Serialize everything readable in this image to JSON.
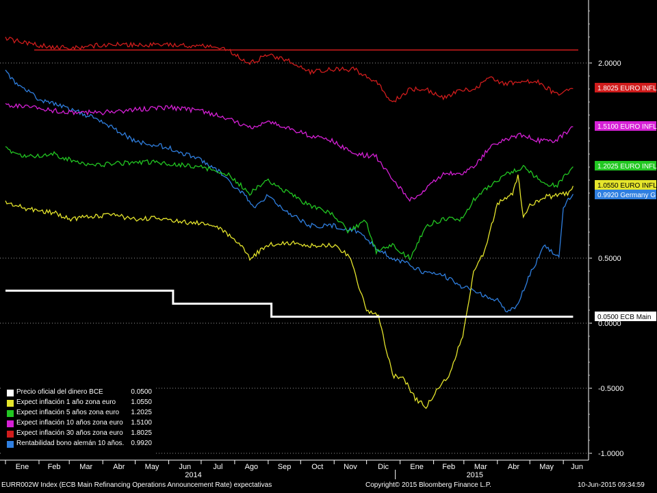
{
  "footer": {
    "index": "EURR002W Index (ECB Main Refinancing Operations Announcement Rate) expectativas",
    "copyright": "Copyright© 2015 Bloomberg Finance L.P.",
    "timestamp": "10-Jun-2015 09:34:59"
  },
  "colors": {
    "background": "#000000",
    "grid": "#9a9a9a",
    "ecb": "#ffffff",
    "infl1": "#e6e62c",
    "infl5": "#22c722",
    "infl10": "#d620d6",
    "infl30": "#d01c1c",
    "bund": "#2f7fe0",
    "threshold": "#d01c1c"
  },
  "chart_data": {
    "type": "line",
    "y_axis_side": "right",
    "ylim": [
      -1.0,
      2.5
    ],
    "y_ticks": [
      -1.0,
      -0.5,
      0.0,
      0.5,
      2.0
    ],
    "y_tick_labels": [
      "-1.0000",
      "-0.5000",
      "0.0000",
      "0.5000",
      "2.0000"
    ],
    "y_grid": "dotted",
    "x_months": [
      "Ene",
      "Feb",
      "Mar",
      "Abr",
      "May",
      "Jun",
      "Jul",
      "Ago",
      "Sep",
      "Oct",
      "Nov",
      "Dic",
      "Ene",
      "Feb",
      "Mar",
      "Abr",
      "May",
      "Jun"
    ],
    "x_start": "2014-01",
    "x_end": "2015-06",
    "year_labels": [
      {
        "label": "2014",
        "month": "2014-06"
      },
      {
        "label": "2015",
        "month": "2015-03"
      }
    ],
    "threshold_line": 2.1,
    "series": [
      {
        "name": "Precio oficial del dinero BCE",
        "legend_value": "0.0500",
        "tag": "0.0500 ECB Main",
        "color_key": "ecb",
        "step": true,
        "x": [
          "2014-01-01",
          "2014-06-05",
          "2014-06-05",
          "2014-09-04",
          "2014-09-04",
          "2015-06-10"
        ],
        "y": [
          0.25,
          0.25,
          0.15,
          0.15,
          0.05,
          0.05
        ]
      },
      {
        "name": "Expect inflación 1 año zona euro",
        "legend_value": "1.0550",
        "tag": "1.0550 EURO INFL",
        "color_key": "infl1",
        "x": [
          "2014-01-01",
          "2014-01-20",
          "2014-02-15",
          "2014-03-01",
          "2014-03-20",
          "2014-04-10",
          "2014-05-01",
          "2014-05-20",
          "2014-06-10",
          "2014-06-30",
          "2014-07-20",
          "2014-08-05",
          "2014-08-15",
          "2014-09-01",
          "2014-09-20",
          "2014-10-10",
          "2014-10-30",
          "2014-11-15",
          "2014-12-01",
          "2014-12-12",
          "2014-12-25",
          "2015-01-05",
          "2015-01-15",
          "2015-01-25",
          "2015-02-05",
          "2015-02-15",
          "2015-02-28",
          "2015-03-10",
          "2015-03-20",
          "2015-04-01",
          "2015-04-15",
          "2015-04-20",
          "2015-04-25",
          "2015-05-01",
          "2015-05-15",
          "2015-05-25",
          "2015-06-05",
          "2015-06-10"
        ],
        "y": [
          0.93,
          0.88,
          0.85,
          0.8,
          0.82,
          0.83,
          0.8,
          0.81,
          0.78,
          0.77,
          0.72,
          0.62,
          0.5,
          0.6,
          0.62,
          0.6,
          0.6,
          0.52,
          0.1,
          0.05,
          -0.4,
          -0.43,
          -0.58,
          -0.64,
          -0.5,
          -0.4,
          -0.1,
          0.4,
          0.55,
          0.92,
          1.0,
          1.13,
          0.83,
          0.9,
          0.97,
          0.98,
          1.0,
          1.055
        ]
      },
      {
        "name": "Expect inflación 5 años zona euro",
        "legend_value": "1.2025",
        "tag": "1.2025 EURO INFL",
        "color_key": "infl5",
        "x": [
          "2014-01-01",
          "2014-01-20",
          "2014-02-15",
          "2014-03-10",
          "2014-04-01",
          "2014-05-01",
          "2014-06-01",
          "2014-07-01",
          "2014-07-25",
          "2014-08-15",
          "2014-09-01",
          "2014-09-20",
          "2014-10-10",
          "2014-10-30",
          "2014-11-15",
          "2014-11-30",
          "2014-12-10",
          "2014-12-25",
          "2015-01-10",
          "2015-01-25",
          "2015-02-10",
          "2015-02-28",
          "2015-03-10",
          "2015-03-25",
          "2015-04-10",
          "2015-04-25",
          "2015-05-10",
          "2015-05-25",
          "2015-06-10"
        ],
        "y": [
          1.34,
          1.28,
          1.3,
          1.23,
          1.22,
          1.24,
          1.23,
          1.2,
          1.15,
          1.0,
          1.1,
          1.0,
          0.9,
          0.85,
          0.7,
          0.8,
          0.55,
          0.6,
          0.5,
          0.75,
          0.8,
          0.8,
          0.95,
          1.05,
          1.15,
          1.2,
          1.1,
          1.05,
          1.2025
        ]
      },
      {
        "name": "Expect inflación 10 años zona euro",
        "legend_value": "1.5100",
        "tag": "1.5100 EURO INFL",
        "color_key": "infl10",
        "x": [
          "2014-01-01",
          "2014-02-01",
          "2014-03-01",
          "2014-04-01",
          "2014-05-01",
          "2014-06-01",
          "2014-07-01",
          "2014-07-25",
          "2014-08-15",
          "2014-09-01",
          "2014-09-20",
          "2014-10-10",
          "2014-10-30",
          "2014-11-20",
          "2014-12-10",
          "2014-12-25",
          "2015-01-10",
          "2015-01-25",
          "2015-02-10",
          "2015-02-28",
          "2015-03-10",
          "2015-03-25",
          "2015-04-10",
          "2015-04-25",
          "2015-05-10",
          "2015-05-25",
          "2015-06-10"
        ],
        "y": [
          1.68,
          1.65,
          1.62,
          1.62,
          1.64,
          1.66,
          1.63,
          1.58,
          1.5,
          1.55,
          1.5,
          1.44,
          1.4,
          1.3,
          1.28,
          1.1,
          0.95,
          1.03,
          1.15,
          1.15,
          1.2,
          1.35,
          1.42,
          1.45,
          1.4,
          1.4,
          1.51
        ]
      },
      {
        "name": "Expect inflación 30 años zona euro",
        "legend_value": "1.8025",
        "tag": "1.8025 EURO INFL",
        "color_key": "infl30",
        "x": [
          "2014-01-01",
          "2014-01-20",
          "2014-02-15",
          "2014-03-10",
          "2014-04-01",
          "2014-05-01",
          "2014-06-01",
          "2014-07-01",
          "2014-07-25",
          "2014-08-15",
          "2014-09-01",
          "2014-09-20",
          "2014-10-10",
          "2014-10-30",
          "2014-11-20",
          "2014-12-10",
          "2014-12-25",
          "2015-01-10",
          "2015-01-25",
          "2015-02-10",
          "2015-02-28",
          "2015-03-10",
          "2015-03-25",
          "2015-04-10",
          "2015-04-25",
          "2015-05-10",
          "2015-05-25",
          "2015-06-10"
        ],
        "y": [
          2.19,
          2.15,
          2.12,
          2.12,
          2.14,
          2.14,
          2.14,
          2.13,
          2.1,
          2.0,
          2.06,
          2.02,
          1.93,
          1.95,
          1.95,
          1.85,
          1.7,
          1.8,
          1.8,
          1.73,
          1.8,
          1.8,
          1.88,
          1.84,
          1.86,
          1.85,
          1.76,
          1.8025
        ]
      },
      {
        "name": "Rentabilidad bono alemán 10 años.",
        "legend_value": "0.9920",
        "tag": "0.9920 Germany G",
        "color_key": "bund",
        "x": [
          "2014-01-01",
          "2014-01-10",
          "2014-02-01",
          "2014-03-01",
          "2014-04-01",
          "2014-05-01",
          "2014-06-01",
          "2014-07-01",
          "2014-07-20",
          "2014-08-05",
          "2014-08-20",
          "2014-09-01",
          "2014-09-20",
          "2014-10-10",
          "2014-10-30",
          "2014-11-20",
          "2014-12-10",
          "2014-12-25",
          "2015-01-10",
          "2015-01-25",
          "2015-02-10",
          "2015-02-28",
          "2015-03-15",
          "2015-04-01",
          "2015-04-10",
          "2015-04-20",
          "2015-05-01",
          "2015-05-15",
          "2015-05-28",
          "2015-06-01",
          "2015-06-10"
        ],
        "y": [
          1.93,
          1.85,
          1.72,
          1.65,
          1.55,
          1.4,
          1.35,
          1.25,
          1.15,
          1.02,
          0.9,
          0.98,
          0.85,
          0.75,
          0.75,
          0.72,
          0.58,
          0.5,
          0.45,
          0.38,
          0.37,
          0.28,
          0.23,
          0.18,
          0.08,
          0.15,
          0.37,
          0.6,
          0.5,
          0.9,
          0.992
        ]
      }
    ]
  }
}
